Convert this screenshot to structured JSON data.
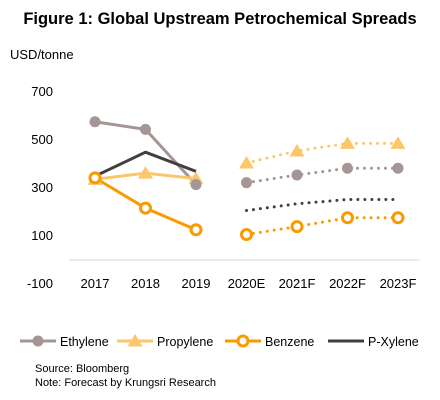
{
  "title": "Figure 1: Global Upstream Petrochemical Spreads",
  "source_note": "Source: Bloomberg",
  "forecast_note": "Note: Forecast by Krungsri Research",
  "chart_data": {
    "type": "line",
    "ylabel": "USD/tonne",
    "categories": [
      "2017",
      "2018",
      "2019",
      "2020E",
      "2021F",
      "2022F",
      "2023F"
    ],
    "ylim": [
      -100,
      700
    ],
    "yticks": [
      -100,
      100,
      300,
      500,
      700
    ],
    "grid": false,
    "legend_position": "bottom",
    "forecast_style": "dotted lines from 2020E onward",
    "series": [
      {
        "name": "Ethylene",
        "color": "#a59595",
        "marker": "circle",
        "values": [
          572,
          540,
          310,
          318,
          350,
          378,
          378
        ]
      },
      {
        "name": "Propylene",
        "color": "#fbc76a",
        "marker": "triangle",
        "values": [
          332,
          358,
          335,
          400,
          450,
          482,
          482
        ]
      },
      {
        "name": "Benzene",
        "color": "#fb9a00",
        "marker": "hollow-circle",
        "values": [
          338,
          212,
          122,
          102,
          135,
          172,
          172
        ]
      },
      {
        "name": "P-Xylene",
        "color": "#443d3d",
        "marker": "none",
        "values": [
          345,
          445,
          365,
          202,
          230,
          248,
          248
        ]
      }
    ]
  }
}
